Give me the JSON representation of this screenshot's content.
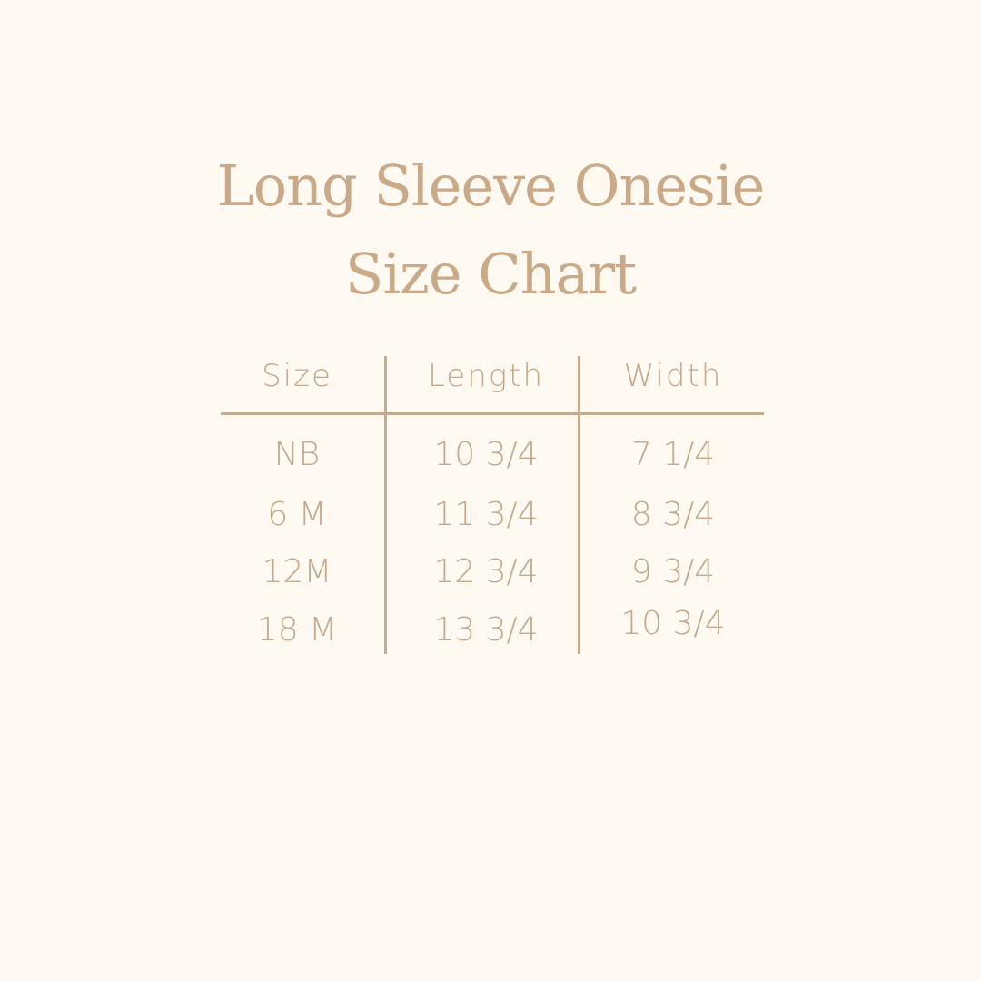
{
  "title": {
    "line1": "Long Sleeve Onesie",
    "line2": "Size Chart"
  },
  "table": {
    "headers": [
      "Size",
      "Length",
      "Width"
    ],
    "rows": [
      [
        "NB",
        "10 3/4",
        "7 1/4"
      ],
      [
        "6 M",
        "11 3/4",
        "8 3/4"
      ],
      [
        "12M",
        "12 3/4",
        "9 3/4"
      ],
      [
        "18 M",
        "13 3/4",
        "10 3/4"
      ]
    ]
  },
  "colors": {
    "background": "#fefaf1",
    "text": "#c4a88a"
  }
}
